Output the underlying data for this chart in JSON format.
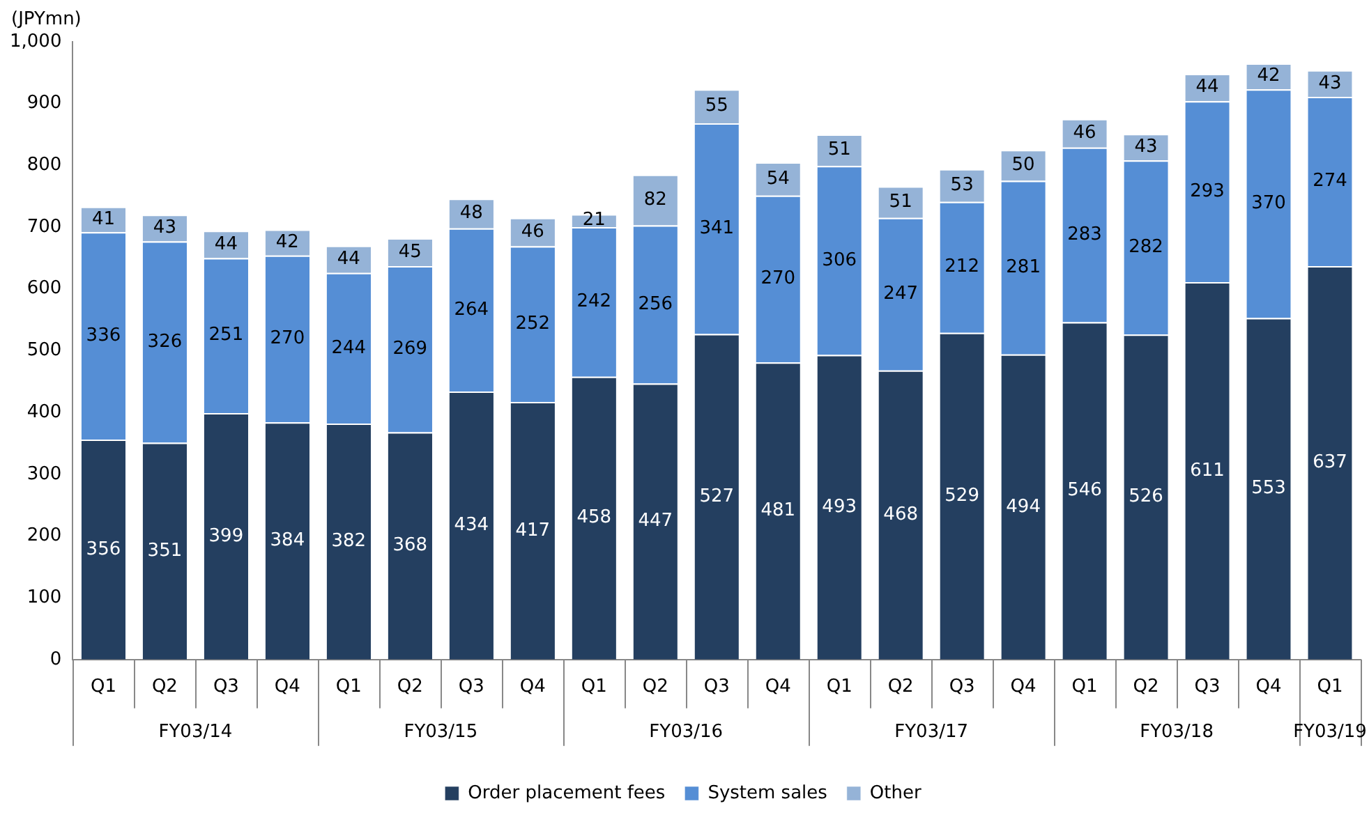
{
  "chart_data": {
    "type": "bar",
    "stacked": true,
    "ylabel": "(JPYmn)",
    "categories": [
      "Q1",
      "Q2",
      "Q3",
      "Q4",
      "Q1",
      "Q2",
      "Q3",
      "Q4",
      "Q1",
      "Q2",
      "Q3",
      "Q4",
      "Q1",
      "Q2",
      "Q3",
      "Q4",
      "Q1",
      "Q2",
      "Q3",
      "Q4",
      "Q1"
    ],
    "annotations": [
      "FY03/14",
      "FY03/15",
      "FY03/16",
      "FY03/17",
      "FY03/18",
      "FY03/19"
    ],
    "series": [
      {
        "name": "Order placement fees",
        "color": "#243f60",
        "values": [
          356,
          351,
          399,
          384,
          382,
          368,
          434,
          417,
          458,
          447,
          527,
          481,
          493,
          468,
          529,
          494,
          546,
          526,
          611,
          553,
          637
        ]
      },
      {
        "name": "System sales",
        "color": "#558ed5",
        "values": [
          336,
          326,
          251,
          270,
          244,
          269,
          264,
          252,
          242,
          256,
          341,
          270,
          306,
          247,
          212,
          281,
          283,
          282,
          293,
          370,
          274
        ]
      },
      {
        "name": "Other",
        "color": "#95b3d7",
        "values": [
          41,
          43,
          44,
          42,
          44,
          45,
          48,
          46,
          21,
          82,
          55,
          54,
          51,
          51,
          53,
          50,
          46,
          43,
          44,
          42,
          43
        ]
      }
    ],
    "ylim": [
      0,
      1000
    ],
    "yticks": [
      0,
      100,
      200,
      300,
      400,
      500,
      600,
      700,
      800,
      900,
      {
        "value": 1000,
        "label": "1,000"
      }
    ],
    "grid": false,
    "legend": "bottom",
    "data_labels": true
  }
}
